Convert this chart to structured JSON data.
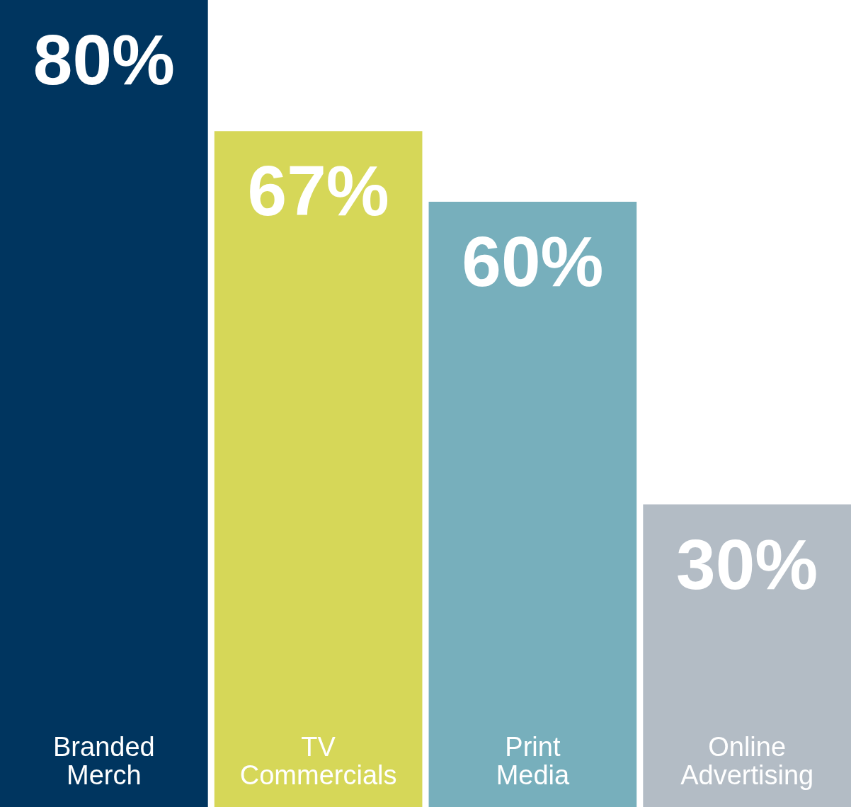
{
  "chart_data": {
    "type": "bar",
    "categories": [
      "Branded Merch",
      "TV Commercials",
      "Print Media",
      "Online Advertising"
    ],
    "values": [
      80,
      67,
      60,
      30
    ],
    "colors": [
      "#00355f",
      "#d6d758",
      "#77afbc",
      "#b3bcc5"
    ],
    "value_labels": [
      "80%",
      "67%",
      "60%",
      "30%"
    ],
    "ylim": [
      0,
      80
    ],
    "tick_labels": "x",
    "grid": false,
    "legend": false
  }
}
